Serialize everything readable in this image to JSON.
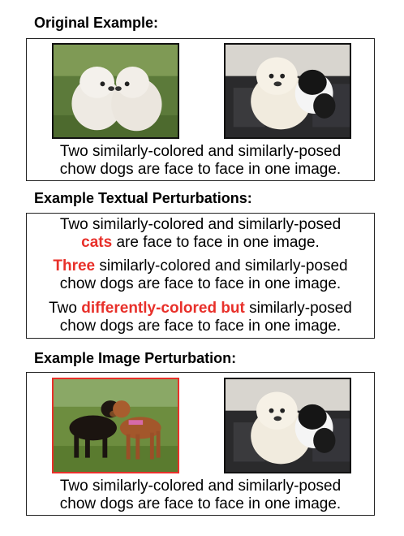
{
  "original": {
    "heading": "Original Example:",
    "caption_line1": "Two similarly-colored and similarly-posed",
    "caption_line2": "chow dogs are face to face in one image."
  },
  "textual": {
    "heading": "Example Textual Perturbations:",
    "items": [
      {
        "line1": "Two similarly-colored and similarly-posed",
        "line2_highlight": "cats",
        "line2_rest": " are face to face in one image."
      },
      {
        "line1_highlight": "Three",
        "line1_rest": " similarly-colored and similarly-posed",
        "line2": "chow dogs are face to face in one image."
      },
      {
        "line1_pre": "Two ",
        "line1_highlight": "differently-colored but",
        "line1_rest": " similarly-posed",
        "line2": "chow dogs are face to face in one image."
      }
    ]
  },
  "image_perturbation": {
    "heading": "Example Image Perturbation:",
    "caption_line1": "Two similarly-colored and similarly-posed",
    "caption_line2": "chow dogs are face to face in one image."
  },
  "colors": {
    "highlight": "#e8302a",
    "perturbed_border": "#e8302a"
  },
  "icons": [
    "chow-puppies-photo",
    "puppy-and-dog-on-couch-photo",
    "two-dogs-on-grass-photo"
  ]
}
